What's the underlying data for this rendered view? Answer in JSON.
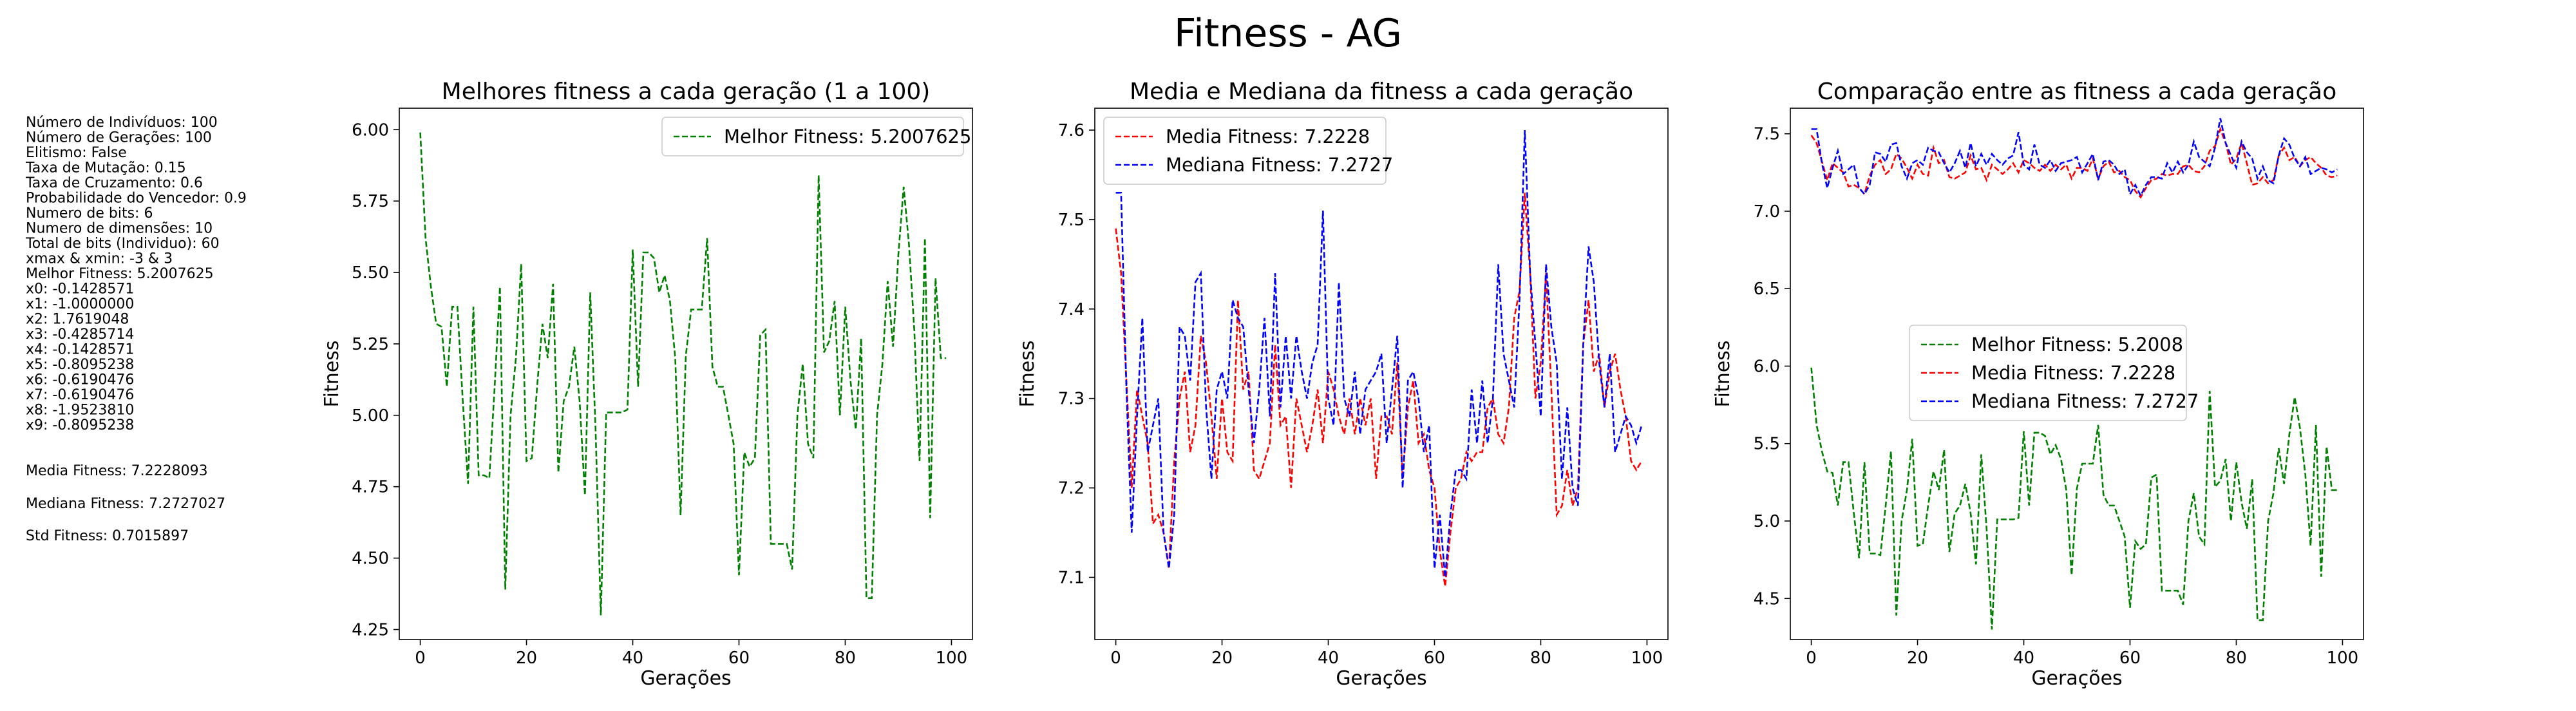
{
  "suptitle": "Fitness - AG",
  "params_lines": [
    "Número de Indivíduos: 100",
    "Número de Gerações: 100",
    "Elitismo: False",
    "Taxa de Mutação: 0.15",
    "Taxa de Cruzamento: 0.6",
    "Probabilidade do Vencedor: 0.9",
    "Numero de bits: 6",
    "Numero de dimensões: 10",
    "Total de bits (Individuo): 60",
    "xmax & xmin: -3 & 3",
    "Melhor Fitness: 5.2007625",
    "x0: -0.1428571",
    "x1: -1.0000000",
    "x2: 1.7619048",
    "x3: -0.4285714",
    "x4: -0.1428571",
    "x5: -0.8095238",
    "x6: -0.6190476",
    "x7: -0.6190476",
    "x8: -1.9523810",
    "x9: -0.8095238"
  ],
  "stats": {
    "media": "Media Fitness: 7.2228093",
    "mediana": "Mediana Fitness: 7.2727027",
    "std": "Std Fitness: 0.7015897"
  },
  "colors": {
    "best": "#008000",
    "mean": "#ff0000",
    "median": "#0000ff"
  },
  "series_values": {
    "best": [
      5.99,
      5.62,
      5.45,
      5.32,
      5.31,
      5.1,
      5.38,
      5.38,
      5.05,
      4.76,
      5.38,
      4.79,
      4.79,
      4.78,
      5.1,
      5.45,
      4.39,
      5.0,
      5.2,
      5.53,
      4.84,
      4.85,
      5.1,
      5.32,
      5.2,
      5.46,
      4.8,
      5.05,
      5.1,
      5.24,
      5.05,
      4.72,
      5.43,
      4.95,
      4.3,
      5.01,
      5.01,
      5.01,
      5.01,
      5.02,
      5.58,
      5.1,
      5.57,
      5.57,
      5.55,
      5.43,
      5.49,
      5.4,
      5.2,
      4.65,
      5.21,
      5.37,
      5.37,
      5.37,
      5.62,
      5.17,
      5.1,
      5.1,
      5.0,
      4.9,
      4.44,
      4.87,
      4.82,
      4.85,
      5.28,
      5.3,
      4.55,
      4.55,
      4.55,
      4.55,
      4.46,
      5.0,
      5.18,
      4.9,
      4.85,
      5.84,
      5.22,
      5.26,
      5.4,
      5.0,
      5.38,
      5.12,
      4.95,
      5.27,
      4.36,
      4.36,
      5.0,
      5.18,
      5.47,
      5.24,
      5.56,
      5.8,
      5.6,
      5.3,
      4.84,
      5.62,
      4.64,
      5.48,
      5.2,
      5.2
    ],
    "mean": [
      7.49,
      7.44,
      7.32,
      7.2,
      7.31,
      7.28,
      7.25,
      7.16,
      7.17,
      7.15,
      7.11,
      7.23,
      7.3,
      7.33,
      7.24,
      7.27,
      7.37,
      7.34,
      7.28,
      7.21,
      7.3,
      7.24,
      7.23,
      7.41,
      7.31,
      7.33,
      7.22,
      7.21,
      7.23,
      7.25,
      7.36,
      7.27,
      7.28,
      7.2,
      7.3,
      7.27,
      7.24,
      7.27,
      7.31,
      7.25,
      7.33,
      7.31,
      7.28,
      7.26,
      7.3,
      7.26,
      7.3,
      7.27,
      7.3,
      7.21,
      7.28,
      7.28,
      7.26,
      7.34,
      7.21,
      7.29,
      7.32,
      7.25,
      7.26,
      7.22,
      7.2,
      7.13,
      7.09,
      7.15,
      7.2,
      7.21,
      7.24,
      7.23,
      7.24,
      7.24,
      7.29,
      7.3,
      7.26,
      7.25,
      7.29,
      7.39,
      7.42,
      7.53,
      7.44,
      7.3,
      7.34,
      7.44,
      7.31,
      7.17,
      7.18,
      7.22,
      7.18,
      7.2,
      7.36,
      7.41,
      7.33,
      7.35,
      7.29,
      7.33,
      7.35,
      7.31,
      7.28,
      7.23,
      7.22,
      7.23
    ],
    "median": [
      7.53,
      7.53,
      7.31,
      7.15,
      7.28,
      7.39,
      7.24,
      7.27,
      7.3,
      7.15,
      7.11,
      7.17,
      7.38,
      7.37,
      7.32,
      7.43,
      7.44,
      7.29,
      7.21,
      7.31,
      7.33,
      7.3,
      7.41,
      7.39,
      7.38,
      7.31,
      7.25,
      7.31,
      7.39,
      7.28,
      7.44,
      7.29,
      7.37,
      7.3,
      7.37,
      7.33,
      7.3,
      7.34,
      7.36,
      7.51,
      7.3,
      7.27,
      7.43,
      7.3,
      7.28,
      7.33,
      7.26,
      7.31,
      7.32,
      7.33,
      7.35,
      7.25,
      7.31,
      7.37,
      7.2,
      7.32,
      7.33,
      7.3,
      7.24,
      7.27,
      7.11,
      7.17,
      7.1,
      7.17,
      7.22,
      7.22,
      7.21,
      7.31,
      7.25,
      7.32,
      7.25,
      7.3,
      7.45,
      7.35,
      7.32,
      7.29,
      7.41,
      7.6,
      7.44,
      7.36,
      7.28,
      7.45,
      7.38,
      7.34,
      7.21,
      7.29,
      7.2,
      7.18,
      7.36,
      7.47,
      7.43,
      7.34,
      7.29,
      7.35,
      7.24,
      7.26,
      7.28,
      7.27,
      7.25,
      7.27
    ]
  },
  "chart_data": [
    {
      "type": "line",
      "title": "Melhores fitness a cada geração (1 a 100)",
      "xlabel": "Gerações",
      "ylabel": "Fitness",
      "xlim": [
        -3.95,
        103.95
      ],
      "ylim": [
        4.215,
        6.075
      ],
      "xticks": [
        0,
        20,
        40,
        60,
        80,
        100
      ],
      "yticks": [
        4.25,
        4.5,
        4.75,
        5.0,
        5.25,
        5.5,
        5.75,
        6.0
      ],
      "ytick_labels": [
        "4.25",
        "4.50",
        "4.75",
        "5.00",
        "5.25",
        "5.50",
        "5.75",
        "6.00"
      ],
      "legend": "top-right",
      "series": [
        {
          "name": "Melhor Fitness: 5.2007625",
          "key": "best",
          "color": "#008000"
        }
      ]
    },
    {
      "type": "line",
      "title": "Media e Mediana da fitness a cada geração",
      "xlabel": "Gerações",
      "ylabel": "Fitness",
      "xlim": [
        -3.95,
        103.95
      ],
      "ylim": [
        7.0305,
        7.6245
      ],
      "xticks": [
        0,
        20,
        40,
        60,
        80,
        100
      ],
      "yticks": [
        7.1,
        7.2,
        7.3,
        7.4,
        7.5,
        7.6
      ],
      "ytick_labels": [
        "7.1",
        "7.2",
        "7.3",
        "7.4",
        "7.5",
        "7.6"
      ],
      "legend": "top-left",
      "series": [
        {
          "name": "Media Fitness: 7.2228",
          "key": "mean",
          "color": "#ff0000"
        },
        {
          "name": "Mediana Fitness: 7.2727",
          "key": "median",
          "color": "#0000ff"
        }
      ]
    },
    {
      "type": "line",
      "title": "Comparação entre as fitness a cada geração",
      "xlabel": "Gerações",
      "ylabel": "Fitness",
      "xlim": [
        -3.95,
        103.95
      ],
      "ylim": [
        4.235,
        7.665
      ],
      "xticks": [
        0,
        20,
        40,
        60,
        80,
        100
      ],
      "yticks": [
        4.5,
        5.0,
        5.5,
        6.0,
        6.5,
        7.0,
        7.5
      ],
      "ytick_labels": [
        "4.5",
        "5.0",
        "5.5",
        "6.0",
        "6.5",
        "7.0",
        "7.5"
      ],
      "legend": "center",
      "series": [
        {
          "name": "Melhor Fitness: 5.2008",
          "key": "best",
          "color": "#008000"
        },
        {
          "name": "Media Fitness: 7.2228",
          "key": "mean",
          "color": "#ff0000"
        },
        {
          "name": "Mediana Fitness: 7.2727",
          "key": "median",
          "color": "#0000ff"
        }
      ]
    }
  ]
}
